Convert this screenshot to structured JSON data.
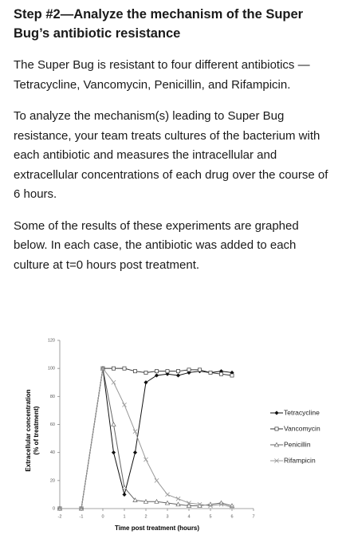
{
  "document": {
    "heading": "Step #2—Analyze the mechanism of the Super Bug’s antibiotic resistance",
    "paragraphs": [
      "The Super Bug is resistant to four different antibiotics —Tetracycline, Vancomycin, Penicillin, and Rifampicin.",
      "To analyze the mechanism(s) leading to Super Bug resistance, your team treats cultures of the bacterium with each antibiotic and measures the intracellular and extracellular concentrations of each drug over the course of 6 hours.",
      "Some of the results of these experiments are graphed below. In each case, the antibiotic was added to each culture at t=0 hours post treatment."
    ]
  },
  "chart_data": {
    "type": "line",
    "xlabel": "Time post treatment (hours)",
    "ylabel": [
      "Extracellular concentration",
      "(% of treatment)"
    ],
    "x": [
      -2,
      -1,
      0,
      0.5,
      1,
      1.5,
      2,
      2.5,
      3,
      3.5,
      4,
      4.5,
      5,
      5.5,
      6
    ],
    "series": [
      {
        "name": "Tetracycline",
        "color": "#111111",
        "marker": "diamond",
        "values": [
          0,
          0,
          100,
          40,
          10,
          40,
          90,
          95,
          96,
          95,
          97,
          98,
          97,
          98,
          97
        ]
      },
      {
        "name": "Vancomycin",
        "color": "#333333",
        "marker": "square",
        "values": [
          0,
          0,
          100,
          100,
          100,
          98,
          97,
          98,
          98,
          98,
          99,
          99,
          97,
          96,
          95
        ]
      },
      {
        "name": "Penicillin",
        "color": "#666666",
        "marker": "triangle",
        "values": [
          0,
          0,
          100,
          60,
          15,
          6,
          5,
          5,
          4,
          3,
          2,
          2,
          3,
          4,
          2
        ]
      },
      {
        "name": "Rifampicin",
        "color": "#999999",
        "marker": "x",
        "values": [
          0,
          0,
          100,
          90,
          74,
          55,
          35,
          20,
          10,
          7,
          4,
          3,
          2,
          3,
          1
        ]
      }
    ],
    "xlim": [
      -2,
      7
    ],
    "xticks": [
      -2,
      -1,
      0,
      1,
      2,
      3,
      4,
      5,
      6,
      7
    ],
    "ylim": [
      0,
      120
    ],
    "yticks": [
      0,
      20,
      40,
      60,
      80,
      100,
      120
    ],
    "grid": false
  }
}
